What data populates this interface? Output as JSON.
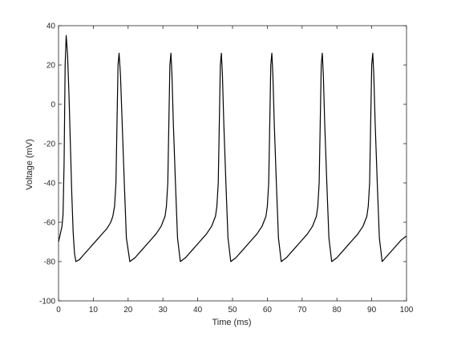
{
  "chart_data": {
    "type": "line",
    "title": "",
    "xlabel": "Time (ms)",
    "ylabel": "Voltage (mV)",
    "xlim": [
      0,
      100
    ],
    "ylim": [
      -100,
      40
    ],
    "xticks": [
      0,
      10,
      20,
      30,
      40,
      50,
      60,
      70,
      80,
      90,
      100
    ],
    "yticks": [
      -100,
      -80,
      -60,
      -40,
      -20,
      0,
      20,
      40
    ],
    "grid": false,
    "series": [
      {
        "color": "#000000",
        "x": [
          0,
          0.5,
          1,
          1.3,
          1.6,
          1.9,
          2.2,
          2.6,
          3.0,
          3.4,
          3.8,
          4.2,
          4.6,
          5.0,
          6.0,
          7.0,
          8.0,
          9.0,
          10.0,
          11.0,
          12.0,
          13.0,
          14.0,
          15.0,
          15.6,
          16.1,
          16.5,
          16.8,
          17.1,
          17.4,
          17.8,
          18.3,
          18.9,
          19.5,
          20.5,
          22.0,
          24.0,
          26.0,
          28.0,
          29.5,
          30.6,
          31.0,
          31.4,
          31.7,
          32.0,
          32.3,
          32.6,
          33.0,
          33.6,
          34.2,
          35.0,
          36.5,
          38.5,
          40.5,
          42.5,
          44.0,
          45.1,
          45.5,
          45.9,
          46.2,
          46.5,
          46.8,
          47.1,
          47.5,
          48.1,
          48.7,
          49.5,
          51.0,
          53.0,
          55.0,
          57.0,
          58.5,
          59.6,
          60.0,
          60.4,
          60.7,
          61.0,
          61.3,
          61.6,
          62.0,
          62.6,
          63.2,
          64.0,
          65.5,
          67.5,
          69.5,
          71.5,
          73.0,
          74.1,
          74.5,
          74.9,
          75.2,
          75.5,
          75.8,
          76.1,
          76.5,
          77.1,
          77.7,
          78.5,
          80.0,
          82.0,
          84.0,
          86.0,
          87.5,
          88.6,
          89.0,
          89.4,
          89.7,
          90.0,
          90.3,
          90.6,
          91.0,
          91.6,
          92.2,
          93.0,
          94.5,
          96.5,
          98.5,
          100.0
        ],
        "y": [
          -70,
          -66,
          -62,
          -56,
          -30,
          20,
          35,
          25,
          5,
          -20,
          -45,
          -65,
          -76,
          -80,
          -79,
          -77,
          -75,
          -73,
          -71,
          -69,
          -67,
          -65,
          -63,
          -60,
          -57,
          -52,
          -40,
          -10,
          20,
          26,
          15,
          -10,
          -40,
          -68,
          -80,
          -78,
          -74,
          -70,
          -66,
          -62,
          -57,
          -52,
          -40,
          -10,
          20,
          26,
          15,
          -10,
          -40,
          -68,
          -80,
          -78,
          -74,
          -70,
          -66,
          -62,
          -57,
          -52,
          -40,
          -10,
          20,
          26,
          15,
          -10,
          -40,
          -68,
          -80,
          -78,
          -74,
          -70,
          -66,
          -62,
          -57,
          -52,
          -40,
          -10,
          20,
          26,
          15,
          -10,
          -40,
          -68,
          -80,
          -78,
          -74,
          -70,
          -66,
          -62,
          -57,
          -52,
          -40,
          -10,
          20,
          26,
          15,
          -10,
          -40,
          -68,
          -80,
          -78,
          -74,
          -70,
          -66,
          -62,
          -57,
          -52,
          -40,
          -10,
          20,
          26,
          15,
          -10,
          -40,
          -68,
          -80,
          -77,
          -73,
          -69,
          -67
        ]
      }
    ]
  }
}
